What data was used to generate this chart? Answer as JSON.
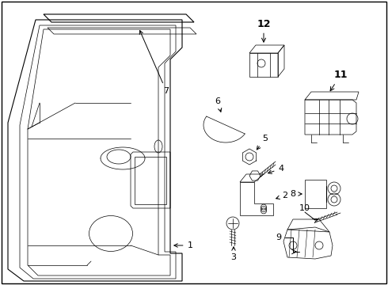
{
  "background_color": "#ffffff",
  "line_color": "#000000",
  "gray_fill": "#d0d0d0",
  "figsize": [
    4.9,
    3.6
  ],
  "dpi": 100,
  "border": true
}
